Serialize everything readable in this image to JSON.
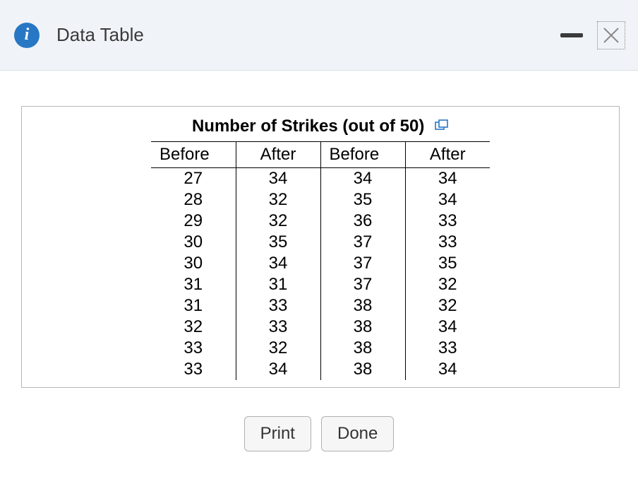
{
  "header": {
    "title": "Data Table"
  },
  "table": {
    "title": "Number of Strikes (out of 50)",
    "columns": [
      "Before",
      "After",
      "Before",
      "After"
    ],
    "rows": [
      [
        "27",
        "34",
        "34",
        "34"
      ],
      [
        "28",
        "32",
        "35",
        "34"
      ],
      [
        "29",
        "32",
        "36",
        "33"
      ],
      [
        "30",
        "35",
        "37",
        "33"
      ],
      [
        "30",
        "34",
        "37",
        "35"
      ],
      [
        "31",
        "31",
        "37",
        "32"
      ],
      [
        "31",
        "33",
        "38",
        "32"
      ],
      [
        "32",
        "33",
        "38",
        "34"
      ],
      [
        "33",
        "32",
        "38",
        "33"
      ],
      [
        "33",
        "34",
        "38",
        "34"
      ]
    ]
  },
  "buttons": {
    "print": "Print",
    "done": "Done"
  },
  "colors": {
    "header_bg": "#f0f4f8",
    "info_icon_bg": "#2777c5",
    "copy_icon": "#2777c5",
    "border": "#b8b8b8",
    "table_line": "#000000"
  }
}
